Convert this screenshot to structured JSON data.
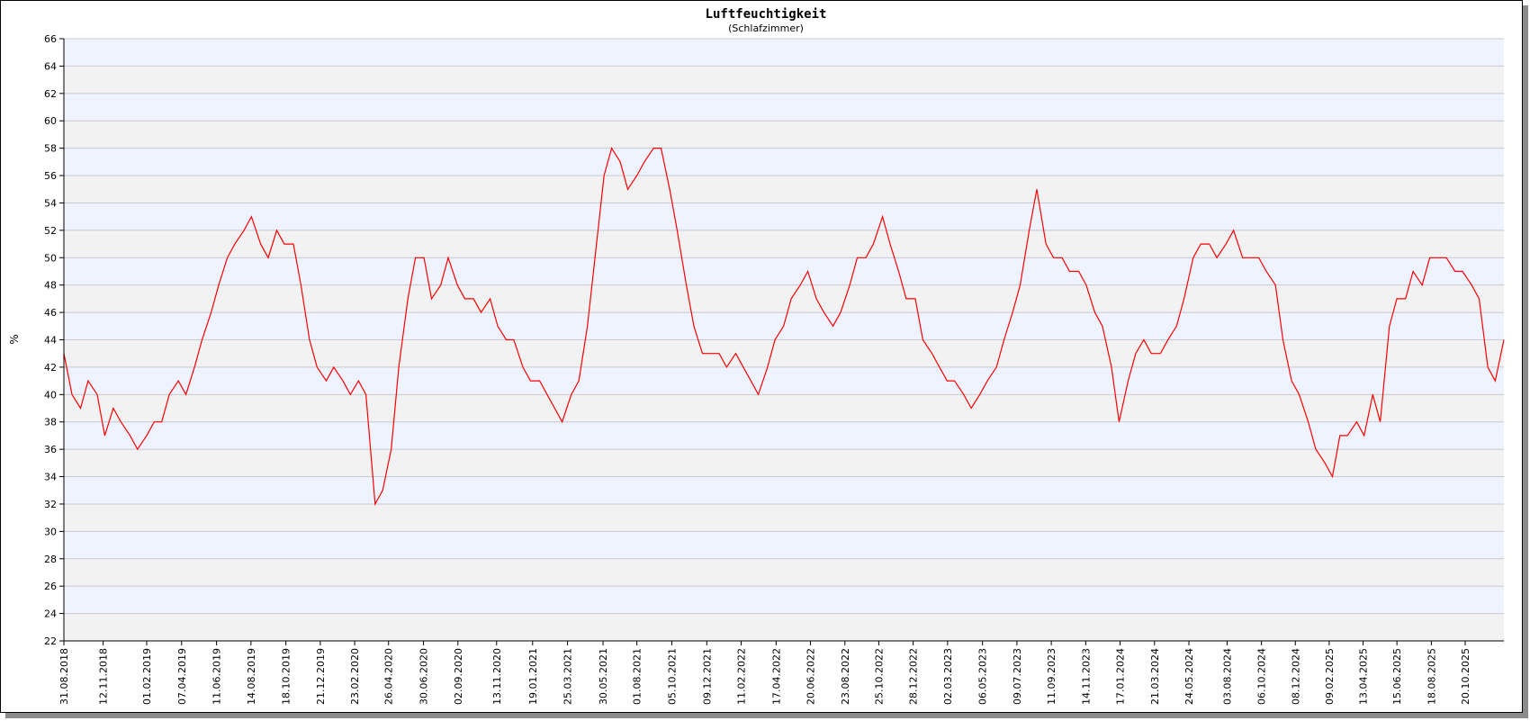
{
  "chart_data": {
    "type": "line",
    "title": "Luftfeuchtigkeit",
    "subtitle": "(Schlafzimmer)",
    "ylabel": "%",
    "xlabel": "",
    "ylim": [
      22,
      66
    ],
    "y_ticks": [
      22,
      24,
      26,
      28,
      30,
      32,
      34,
      36,
      38,
      40,
      42,
      44,
      46,
      48,
      50,
      52,
      54,
      56,
      58,
      60,
      62,
      64,
      66
    ],
    "x_range": [
      "2018-08-31",
      "2025-12-31"
    ],
    "x_tick_labels": [
      "31.08.2018",
      "12.11.2018",
      "01.02.2019",
      "07.04.2019",
      "11.06.2019",
      "14.08.2019",
      "18.10.2019",
      "21.12.2019",
      "23.02.2020",
      "26.04.2020",
      "30.06.2020",
      "02.09.2020",
      "13.11.2020",
      "19.01.2021",
      "25.03.2021",
      "30.05.2021",
      "01.08.2021",
      "05.10.2021",
      "09.12.2021",
      "11.02.2022",
      "17.04.2022",
      "20.06.2022",
      "23.08.2022",
      "25.10.2022",
      "28.12.2022",
      "02.03.2023",
      "06.05.2023",
      "09.07.2023",
      "11.09.2023",
      "14.11.2023",
      "17.01.2024",
      "21.03.2024",
      "24.05.2024",
      "03.08.2024",
      "06.10.2024",
      "08.12.2024",
      "09.02.2025",
      "13.04.2025",
      "15.06.2025",
      "18.08.2025",
      "20.10.2025"
    ],
    "grid": true,
    "band_colors": [
      "#f2f2f2",
      "#eef3ff"
    ],
    "series_color": "#ff0000",
    "series": [
      {
        "name": "",
        "points": [
          [
            "2018-08-31",
            43
          ],
          [
            "2018-09-15",
            40
          ],
          [
            "2018-10-01",
            39
          ],
          [
            "2018-10-15",
            41
          ],
          [
            "2018-11-01",
            40
          ],
          [
            "2018-11-15",
            37
          ],
          [
            "2018-12-01",
            39
          ],
          [
            "2018-12-15",
            38
          ],
          [
            "2019-01-01",
            37
          ],
          [
            "2019-01-15",
            36
          ],
          [
            "2019-02-01",
            37
          ],
          [
            "2019-02-15",
            38
          ],
          [
            "2019-03-01",
            38
          ],
          [
            "2019-03-15",
            40
          ],
          [
            "2019-04-01",
            41
          ],
          [
            "2019-04-15",
            40
          ],
          [
            "2019-05-01",
            42
          ],
          [
            "2019-05-15",
            44
          ],
          [
            "2019-06-01",
            46
          ],
          [
            "2019-06-15",
            48
          ],
          [
            "2019-07-01",
            50
          ],
          [
            "2019-07-15",
            51
          ],
          [
            "2019-08-01",
            52
          ],
          [
            "2019-08-15",
            53
          ],
          [
            "2019-09-01",
            51
          ],
          [
            "2019-09-15",
            50
          ],
          [
            "2019-10-01",
            52
          ],
          [
            "2019-10-15",
            51
          ],
          [
            "2019-11-01",
            51
          ],
          [
            "2019-11-15",
            48
          ],
          [
            "2019-12-01",
            44
          ],
          [
            "2019-12-15",
            42
          ],
          [
            "2020-01-01",
            41
          ],
          [
            "2020-01-15",
            42
          ],
          [
            "2020-02-01",
            41
          ],
          [
            "2020-02-15",
            40
          ],
          [
            "2020-03-01",
            41
          ],
          [
            "2020-03-15",
            40
          ],
          [
            "2020-04-01",
            32
          ],
          [
            "2020-04-15",
            33
          ],
          [
            "2020-05-01",
            36
          ],
          [
            "2020-05-15",
            42
          ],
          [
            "2020-06-01",
            47
          ],
          [
            "2020-06-15",
            50
          ],
          [
            "2020-07-01",
            50
          ],
          [
            "2020-07-15",
            47
          ],
          [
            "2020-08-01",
            48
          ],
          [
            "2020-08-15",
            50
          ],
          [
            "2020-09-01",
            48
          ],
          [
            "2020-09-15",
            47
          ],
          [
            "2020-10-01",
            47
          ],
          [
            "2020-10-15",
            46
          ],
          [
            "2020-11-01",
            47
          ],
          [
            "2020-11-15",
            45
          ],
          [
            "2020-12-01",
            44
          ],
          [
            "2020-12-15",
            44
          ],
          [
            "2021-01-01",
            42
          ],
          [
            "2021-01-15",
            41
          ],
          [
            "2021-02-01",
            41
          ],
          [
            "2021-02-15",
            40
          ],
          [
            "2021-03-01",
            39
          ],
          [
            "2021-03-15",
            38
          ],
          [
            "2021-04-01",
            40
          ],
          [
            "2021-04-15",
            41
          ],
          [
            "2021-05-01",
            45
          ],
          [
            "2021-05-15",
            50
          ],
          [
            "2021-06-01",
            56
          ],
          [
            "2021-06-15",
            58
          ],
          [
            "2021-07-01",
            57
          ],
          [
            "2021-07-15",
            55
          ],
          [
            "2021-08-01",
            56
          ],
          [
            "2021-08-15",
            57
          ],
          [
            "2021-09-01",
            58
          ],
          [
            "2021-09-15",
            58
          ],
          [
            "2021-10-01",
            55
          ],
          [
            "2021-10-15",
            52
          ],
          [
            "2021-11-01",
            48
          ],
          [
            "2021-11-15",
            45
          ],
          [
            "2021-12-01",
            43
          ],
          [
            "2021-12-15",
            43
          ],
          [
            "2022-01-01",
            43
          ],
          [
            "2022-01-15",
            42
          ],
          [
            "2022-02-01",
            43
          ],
          [
            "2022-02-15",
            42
          ],
          [
            "2022-03-01",
            41
          ],
          [
            "2022-03-15",
            40
          ],
          [
            "2022-04-01",
            42
          ],
          [
            "2022-04-15",
            44
          ],
          [
            "2022-05-01",
            45
          ],
          [
            "2022-05-15",
            47
          ],
          [
            "2022-06-01",
            48
          ],
          [
            "2022-06-15",
            49
          ],
          [
            "2022-07-01",
            47
          ],
          [
            "2022-07-15",
            46
          ],
          [
            "2022-08-01",
            45
          ],
          [
            "2022-08-15",
            46
          ],
          [
            "2022-09-01",
            48
          ],
          [
            "2022-09-15",
            50
          ],
          [
            "2022-10-01",
            50
          ],
          [
            "2022-10-15",
            51
          ],
          [
            "2022-11-01",
            53
          ],
          [
            "2022-11-15",
            51
          ],
          [
            "2022-12-01",
            49
          ],
          [
            "2022-12-15",
            47
          ],
          [
            "2023-01-01",
            47
          ],
          [
            "2023-01-15",
            44
          ],
          [
            "2023-02-01",
            43
          ],
          [
            "2023-02-15",
            42
          ],
          [
            "2023-03-01",
            41
          ],
          [
            "2023-03-15",
            41
          ],
          [
            "2023-04-01",
            40
          ],
          [
            "2023-04-15",
            39
          ],
          [
            "2023-05-01",
            40
          ],
          [
            "2023-05-15",
            41
          ],
          [
            "2023-06-01",
            42
          ],
          [
            "2023-06-15",
            44
          ],
          [
            "2023-07-01",
            46
          ],
          [
            "2023-07-15",
            48
          ],
          [
            "2023-08-01",
            52
          ],
          [
            "2023-08-15",
            55
          ],
          [
            "2023-09-01",
            51
          ],
          [
            "2023-09-15",
            50
          ],
          [
            "2023-10-01",
            50
          ],
          [
            "2023-10-15",
            49
          ],
          [
            "2023-11-01",
            49
          ],
          [
            "2023-11-15",
            48
          ],
          [
            "2023-12-01",
            46
          ],
          [
            "2023-12-15",
            45
          ],
          [
            "2024-01-01",
            42
          ],
          [
            "2024-01-15",
            38
          ],
          [
            "2024-02-01",
            41
          ],
          [
            "2024-02-15",
            43
          ],
          [
            "2024-03-01",
            44
          ],
          [
            "2024-03-15",
            43
          ],
          [
            "2024-04-01",
            43
          ],
          [
            "2024-04-15",
            44
          ],
          [
            "2024-05-01",
            45
          ],
          [
            "2024-05-15",
            47
          ],
          [
            "2024-06-01",
            50
          ],
          [
            "2024-06-15",
            51
          ],
          [
            "2024-07-01",
            51
          ],
          [
            "2024-07-15",
            50
          ],
          [
            "2024-08-01",
            51
          ],
          [
            "2024-08-15",
            52
          ],
          [
            "2024-09-01",
            50
          ],
          [
            "2024-09-15",
            50
          ],
          [
            "2024-10-01",
            50
          ],
          [
            "2024-10-15",
            49
          ],
          [
            "2024-11-01",
            48
          ],
          [
            "2024-11-15",
            44
          ],
          [
            "2024-12-01",
            41
          ],
          [
            "2024-12-15",
            40
          ],
          [
            "2025-01-01",
            38
          ],
          [
            "2025-01-15",
            36
          ],
          [
            "2025-02-01",
            35
          ],
          [
            "2025-02-15",
            34
          ],
          [
            "2025-03-01",
            37
          ],
          [
            "2025-03-15",
            37
          ],
          [
            "2025-04-01",
            38
          ],
          [
            "2025-04-15",
            37
          ],
          [
            "2025-05-01",
            40
          ],
          [
            "2025-05-15",
            38
          ],
          [
            "2025-06-01",
            45
          ],
          [
            "2025-06-15",
            47
          ],
          [
            "2025-07-01",
            47
          ],
          [
            "2025-07-15",
            49
          ],
          [
            "2025-08-01",
            48
          ],
          [
            "2025-08-15",
            50
          ],
          [
            "2025-09-01",
            50
          ],
          [
            "2025-09-15",
            50
          ],
          [
            "2025-10-01",
            49
          ],
          [
            "2025-10-15",
            49
          ],
          [
            "2025-11-01",
            48
          ],
          [
            "2025-11-15",
            47
          ],
          [
            "2025-12-01",
            42
          ],
          [
            "2025-12-15",
            41
          ],
          [
            "2025-12-31",
            44
          ]
        ]
      }
    ]
  }
}
